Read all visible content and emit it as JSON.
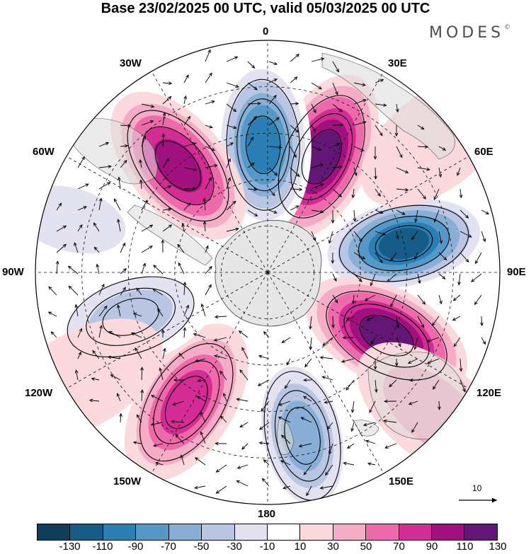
{
  "title": "Base 23/02/2025 00 UTC, valid 05/03/2025 00 UTC",
  "brand": "MODES",
  "brand_mark": "©",
  "longitude_labels": {
    "top": "0",
    "bottom": "180",
    "left": "90W",
    "right": "90E",
    "w30": "30W",
    "e30": "30E",
    "w60": "60W",
    "e60": "60E",
    "w120": "120W",
    "e120": "120E",
    "w150": "150W",
    "e150": "150E"
  },
  "reference_vector": {
    "label": "10"
  },
  "colorbar": {
    "colors": [
      "#0e3e5c",
      "#155c87",
      "#2a7fb5",
      "#5499c7",
      "#89afd6",
      "#b9c6e3",
      "#e2e2f0",
      "#ffffff",
      "#fbd9dc",
      "#f5acc6",
      "#ef6aaa",
      "#d32c94",
      "#a0117f",
      "#621676"
    ],
    "ticks": [
      "-130",
      "-110",
      "-90",
      "-70",
      "-50",
      "-30",
      "-10",
      "10",
      "30",
      "50",
      "70",
      "90",
      "110",
      "130"
    ]
  },
  "map": {
    "projection": "south-polar-stereographic",
    "center_fill": "#e8e8e8",
    "anomaly_centers": [
      {
        "lon": 25,
        "lat_ring": 0.55,
        "value": 120
      },
      {
        "lon": -2,
        "lat_ring": 0.55,
        "value": -120
      },
      {
        "lon": -40,
        "lat_ring": 0.6,
        "value": 90
      },
      {
        "lon": 78,
        "lat_ring": 0.6,
        "value": -130
      },
      {
        "lon": 118,
        "lat_ring": 0.58,
        "value": 120
      },
      {
        "lon": 168,
        "lat_ring": 0.72,
        "value": -80
      },
      {
        "lon": -148,
        "lat_ring": 0.66,
        "value": 80
      },
      {
        "lon": -108,
        "lat_ring": 0.62,
        "value": -50
      },
      {
        "lon": -75,
        "lat_ring": 0.88,
        "value": -30
      },
      {
        "lon": 52,
        "lat_ring": 0.92,
        "value": 20
      },
      {
        "lon": 130,
        "lat_ring": 0.92,
        "value": 30
      },
      {
        "lon": -120,
        "lat_ring": 0.92,
        "value": 20
      }
    ]
  }
}
